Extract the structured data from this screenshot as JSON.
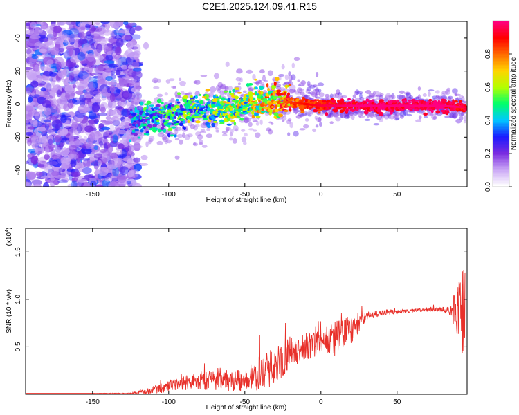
{
  "title": "C2E1.2025.124.09.41.R15",
  "chart_data": [
    {
      "type": "heatmap",
      "xlabel": "Height of straight line (km)",
      "ylabel": "Frequency (Hz)",
      "xlim": [
        -194,
        96
      ],
      "ylim": [
        -50,
        50
      ],
      "xticks": [
        -150,
        -100,
        -50,
        0,
        50
      ],
      "yticks": [
        -40,
        -20,
        0,
        20,
        40
      ],
      "colorbar": {
        "label": "Normalized spectral amplitude",
        "range": [
          0,
          1
        ],
        "ticks": [
          "0.0",
          "0.2",
          "0.4",
          "0.6",
          "0.8"
        ],
        "colormap": [
          "#ffffff",
          "#c9a6f5",
          "#7a2be0",
          "#1a1aff",
          "#00c8ff",
          "#00ff6a",
          "#b4ff00",
          "#ffd400",
          "#ff6a00",
          "#ff0000",
          "#ff0080"
        ]
      },
      "ridge": {
        "x": [
          -125,
          -110,
          -100,
          -90,
          -80,
          -70,
          -60,
          -50,
          -40,
          -30,
          -20,
          -10,
          0,
          20,
          40,
          60,
          80,
          95
        ],
        "frequency": [
          -10,
          -8,
          -7,
          -5,
          -4,
          -3,
          -2,
          0,
          2,
          2,
          1,
          0,
          -1,
          -1,
          -1,
          -1,
          -1,
          -2
        ],
        "amplitude": [
          0.3,
          0.35,
          0.4,
          0.45,
          0.5,
          0.5,
          0.55,
          0.55,
          0.6,
          0.7,
          0.8,
          0.85,
          0.9,
          0.95,
          0.97,
          0.98,
          0.99,
          0.9
        ]
      },
      "noise_region_x": [
        -194,
        -120
      ]
    },
    {
      "type": "line",
      "xlabel": "Height of straight line (km)",
      "ylabel": "SNR (10 * v/v)",
      "y_multiplier": "(x10",
      "y_multiplier_exp": "4",
      "xlim": [
        -194,
        96
      ],
      "ylim": [
        0,
        1.75
      ],
      "xticks": [
        -150,
        -100,
        -50,
        0,
        50
      ],
      "yticks": [
        0.5,
        1.0,
        1.5
      ],
      "color": "#e8302a",
      "series": [
        {
          "x": [
            -194,
            -150,
            -125,
            -115,
            -100,
            -90,
            -80,
            -70,
            -60,
            -50,
            -40,
            -30,
            -20,
            -10,
            0,
            10,
            20,
            30,
            40,
            50,
            60,
            70,
            80,
            85,
            90,
            93,
            95
          ],
          "y": [
            0.01,
            0.01,
            0.01,
            0.03,
            0.08,
            0.12,
            0.15,
            0.14,
            0.13,
            0.16,
            0.22,
            0.3,
            0.42,
            0.5,
            0.55,
            0.58,
            0.68,
            0.82,
            0.86,
            0.87,
            0.88,
            0.89,
            0.89,
            0.88,
            0.88,
            0.9,
            0.8
          ],
          "noise": [
            0.0,
            0.0,
            0.005,
            0.03,
            0.06,
            0.08,
            0.1,
            0.1,
            0.1,
            0.12,
            0.18,
            0.2,
            0.18,
            0.15,
            0.12,
            0.2,
            0.15,
            0.04,
            0.03,
            0.02,
            0.02,
            0.02,
            0.03,
            0.05,
            0.3,
            0.5,
            0.6
          ]
        }
      ]
    }
  ]
}
